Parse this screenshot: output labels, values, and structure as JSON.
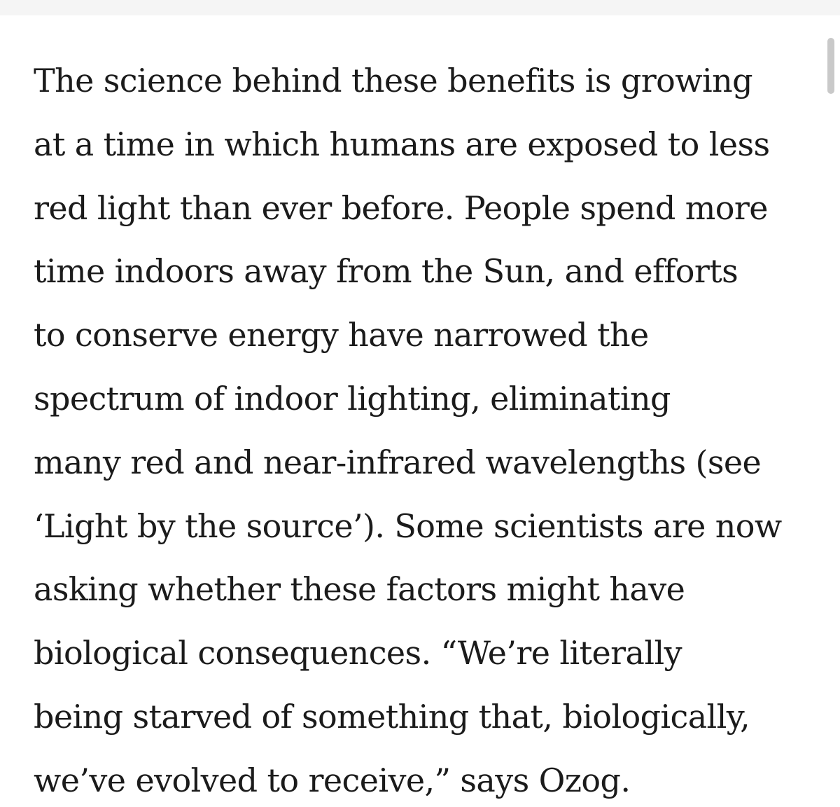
{
  "article": {
    "lines": [
      "The science behind these benefits is growing",
      "at a time in which humans are exposed to less",
      "red light than ever before. People spend more",
      "time indoors away from the Sun, and efforts",
      "to conserve energy have narrowed the",
      "spectrum of indoor lighting, eliminating",
      "many red and near-infrared wavelengths (see",
      "‘Light by the source’). Some scientists are now",
      "asking whether these factors might have",
      "biological consequences. “We’re literally",
      "being starved of something that, biologically,",
      "we’ve evolved to receive,” says Ozog."
    ]
  }
}
